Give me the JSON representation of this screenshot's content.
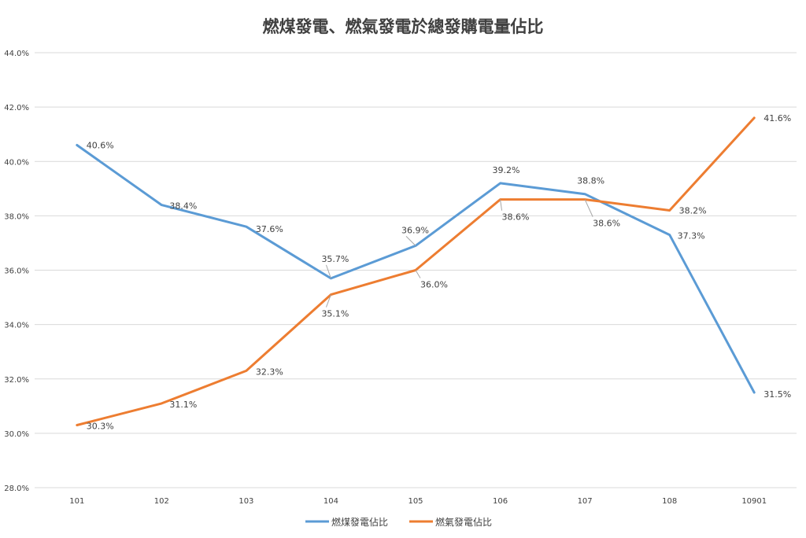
{
  "chart_data": {
    "type": "line",
    "title": "燃煤發電、燃氣發電於總發購電量佔比",
    "categories": [
      "101",
      "102",
      "103",
      "104",
      "105",
      "106",
      "107",
      "108",
      "10901"
    ],
    "series": [
      {
        "name": "燃煤發電佔比",
        "color": "#5b9bd5",
        "values": [
          40.6,
          38.4,
          37.6,
          35.7,
          36.9,
          39.2,
          38.8,
          37.3,
          31.5
        ],
        "labels": [
          "40.6%",
          "38.4%",
          "37.6%",
          "35.7%",
          "36.9%",
          "39.2%",
          "38.8%",
          "37.3%",
          "31.5%"
        ]
      },
      {
        "name": "燃氣發電佔比",
        "color": "#ed7d31",
        "values": [
          30.3,
          31.1,
          32.3,
          35.1,
          36.0,
          38.6,
          38.6,
          38.2,
          41.6
        ],
        "labels": [
          "30.3%",
          "31.1%",
          "32.3%",
          "35.1%",
          "36.0%",
          "38.6%",
          "38.6%",
          "38.2%",
          "41.6%"
        ]
      }
    ],
    "ylim": [
      28,
      44
    ],
    "yticks": [
      28,
      30,
      32,
      34,
      36,
      38,
      40,
      42,
      44
    ],
    "ytick_labels": [
      "28.0%",
      "30.0%",
      "32.0%",
      "34.0%",
      "36.0%",
      "38.0%",
      "40.0%",
      "42.0%",
      "44.0%"
    ],
    "grid": true,
    "legend_position": "bottom",
    "xlabel": "",
    "ylabel": ""
  }
}
